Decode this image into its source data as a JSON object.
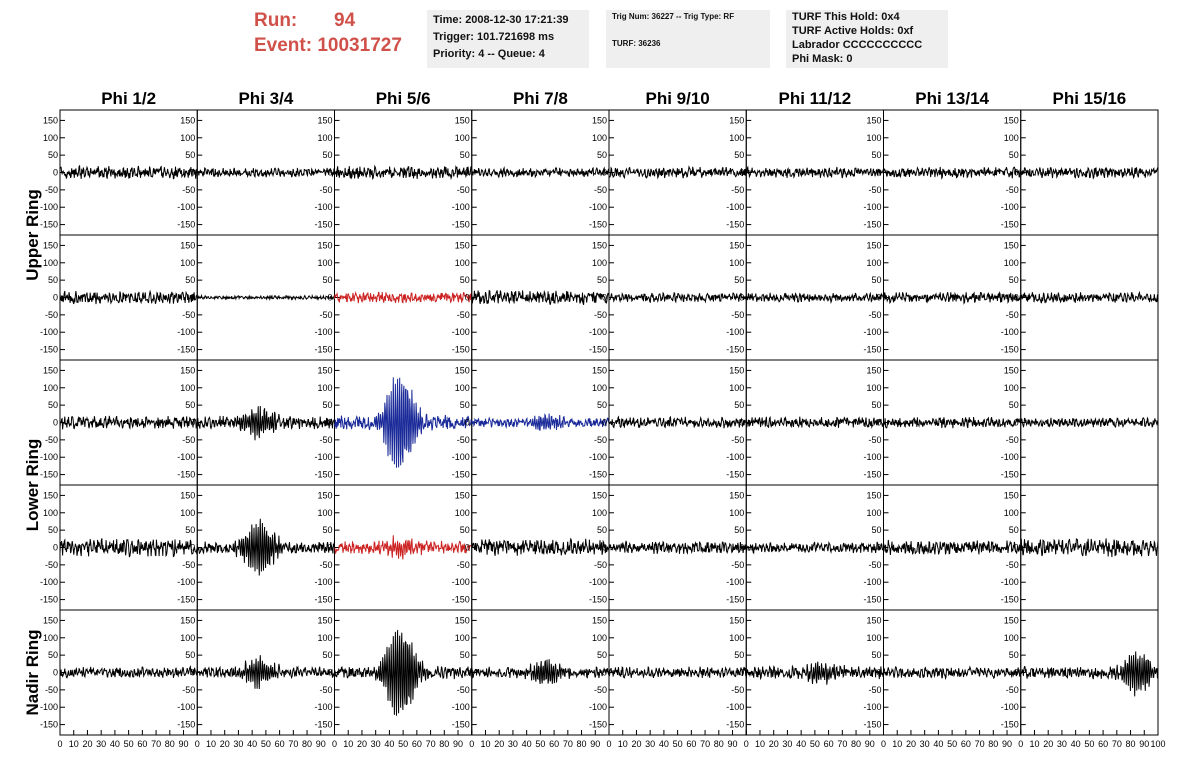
{
  "header": {
    "run_label": "Run:",
    "run_value": "94",
    "event_label": "Event:",
    "event_value": "10031727",
    "info1": [
      "Time: 2008-12-30 17:21:39",
      "Trigger: 101.721698 ms",
      "Priority: 4 -- Queue: 4"
    ],
    "info2": [
      "Trig Num: 36227 -- Trig Type: RF",
      "TURF: 36236"
    ],
    "info3": [
      "TURF This Hold: 0x4",
      "TURF Active Holds: 0xf",
      "Labrador CCCCCCCCCC",
      "Phi Mask: 0"
    ]
  },
  "chart_data": {
    "type": "line",
    "columns": [
      "Phi 1/2",
      "Phi 3/4",
      "Phi 5/6",
      "Phi 7/8",
      "Phi 9/10",
      "Phi 11/12",
      "Phi 13/14",
      "Phi 15/16"
    ],
    "row_groups": [
      {
        "label": "Upper Ring",
        "rows": [
          0,
          1
        ]
      },
      {
        "label": "Lower Ring",
        "rows": [
          2,
          3
        ]
      },
      {
        "label": "Nadir Ring",
        "rows": [
          4
        ]
      }
    ],
    "y_ticks": [
      150,
      100,
      50,
      0,
      -50,
      -100,
      -150
    ],
    "ylim": [
      -180,
      180
    ],
    "x_ticks": [
      0,
      10,
      20,
      30,
      40,
      50,
      60,
      70,
      80,
      90,
      100
    ],
    "xlim": [
      0,
      100
    ],
    "colors": {
      "normal": "#000000",
      "triggered": "#cc2222",
      "coincident": "#1a2a99"
    },
    "panels": [
      [
        {
          "amp": 14,
          "burst": 0,
          "color": "normal"
        },
        {
          "amp": 10,
          "burst": 0,
          "color": "normal"
        },
        {
          "amp": 14,
          "burst": 0,
          "color": "normal"
        },
        {
          "amp": 10,
          "burst": 0,
          "color": "normal"
        },
        {
          "amp": 12,
          "burst": 0,
          "color": "normal"
        },
        {
          "amp": 12,
          "burst": 0,
          "color": "normal"
        },
        {
          "amp": 12,
          "burst": 0,
          "color": "normal"
        },
        {
          "amp": 12,
          "burst": 0,
          "color": "normal"
        }
      ],
      [
        {
          "amp": 14,
          "burst": 0,
          "color": "normal"
        },
        {
          "amp": 4,
          "burst": 0,
          "color": "normal"
        },
        {
          "amp": 12,
          "burst": 0,
          "color": "triggered"
        },
        {
          "amp": 16,
          "burst": 0,
          "color": "normal"
        },
        {
          "amp": 10,
          "burst": 0,
          "color": "normal"
        },
        {
          "amp": 10,
          "burst": 0,
          "color": "normal"
        },
        {
          "amp": 12,
          "burst": 0,
          "color": "normal"
        },
        {
          "amp": 12,
          "burst": 0,
          "color": "normal"
        }
      ],
      [
        {
          "amp": 14,
          "burst": 0,
          "color": "normal"
        },
        {
          "amp": 14,
          "burst": 40,
          "color": "normal"
        },
        {
          "amp": 16,
          "burst": 140,
          "color": "coincident"
        },
        {
          "amp": 10,
          "burst": 22,
          "color": "coincident"
        },
        {
          "amp": 12,
          "burst": 0,
          "color": "normal"
        },
        {
          "amp": 12,
          "burst": 0,
          "color": "normal"
        },
        {
          "amp": 12,
          "burst": 0,
          "color": "normal"
        },
        {
          "amp": 10,
          "burst": 0,
          "color": "normal"
        }
      ],
      [
        {
          "amp": 20,
          "burst": 0,
          "color": "normal"
        },
        {
          "amp": 14,
          "burst": 75,
          "color": "normal"
        },
        {
          "amp": 14,
          "burst": 20,
          "color": "triggered"
        },
        {
          "amp": 18,
          "burst": 0,
          "color": "normal"
        },
        {
          "amp": 14,
          "burst": 0,
          "color": "normal"
        },
        {
          "amp": 12,
          "burst": 0,
          "color": "normal"
        },
        {
          "amp": 16,
          "burst": 0,
          "color": "normal"
        },
        {
          "amp": 20,
          "burst": 0,
          "color": "normal"
        }
      ],
      [
        {
          "amp": 12,
          "burst": 0,
          "color": "normal"
        },
        {
          "amp": 12,
          "burst": 40,
          "color": "normal"
        },
        {
          "amp": 14,
          "burst": 130,
          "color": "normal"
        },
        {
          "amp": 12,
          "burst": 35,
          "color": "normal"
        },
        {
          "amp": 12,
          "burst": 0,
          "color": "normal"
        },
        {
          "amp": 14,
          "burst": 25,
          "color": "normal"
        },
        {
          "amp": 12,
          "burst": 0,
          "color": "normal"
        },
        {
          "amp": 14,
          "burst": 60,
          "color": "normal"
        }
      ]
    ]
  }
}
